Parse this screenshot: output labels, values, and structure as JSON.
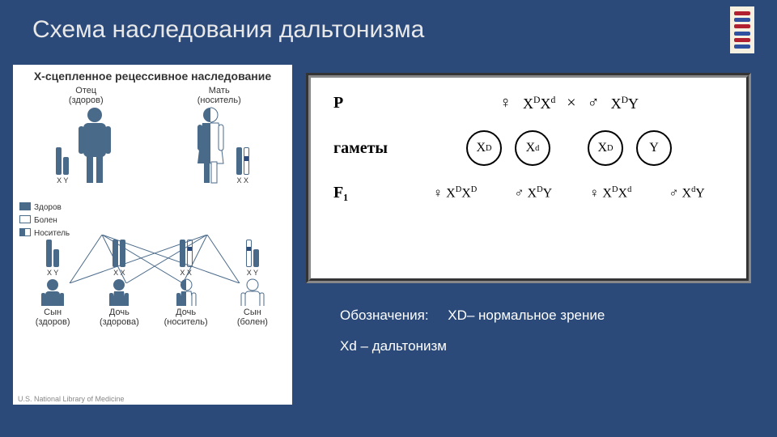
{
  "title": "Схема наследования дальтонизма",
  "dna_colors": [
    "#b02030",
    "#3050a0",
    "#b02030",
    "#3050a0",
    "#b02030",
    "#3050a0"
  ],
  "left": {
    "heading": "Х-сцепленное рецессивное наследование",
    "father": {
      "label1": "Отец",
      "label2": "(здоров)"
    },
    "mother": {
      "label1": "Мать",
      "label2": "(носитель)"
    },
    "chrom_x_label": "X",
    "chrom_y_label": "Y",
    "chrom_xx_label": "X X",
    "chrom_xy_label": "X Y",
    "legend": {
      "healthy": "Здоров",
      "affected": "Болен",
      "carrier": "Носитель"
    },
    "colors": {
      "healthy": "#4a6a8a",
      "affected": "#ffffff",
      "carrier_left": "#4a6a8a",
      "carrier_right": "#ffffff",
      "outline": "#4a6a8a",
      "band": "#2b4a7a"
    },
    "children": [
      {
        "label1": "Сын",
        "label2": "(здоров)",
        "type": "boy",
        "status": "healthy",
        "chrom": "XY"
      },
      {
        "label1": "Дочь",
        "label2": "(здорова)",
        "type": "girl",
        "status": "healthy",
        "chrom": "XX"
      },
      {
        "label1": "Дочь",
        "label2": "(носитель)",
        "type": "girl",
        "status": "carrier",
        "chrom": "Xx"
      },
      {
        "label1": "Сын",
        "label2": "(болен)",
        "type": "boy",
        "status": "affected",
        "chrom": "xY"
      }
    ],
    "credit": "U.S. National Library of Medicine"
  },
  "right": {
    "row_labels": {
      "p": "P",
      "g": "гаметы",
      "f": "F₁"
    },
    "p_female_geno_html": "X<sup>D</sup>X<sup>d</sup>",
    "p_male_geno_html": "X<sup>D</sup>Y",
    "cross_symbol": "×",
    "gametes": [
      "X<sup>D</sup>",
      "X<sup>d</sup>",
      "X<sup>D</sup>",
      "Y"
    ],
    "f1": [
      {
        "sex": "f",
        "geno": "X<sup>D</sup>X<sup>D</sup>"
      },
      {
        "sex": "m",
        "geno": "X<sup>D</sup>Y"
      },
      {
        "sex": "f",
        "geno": "X<sup>D</sup>X<sup>d</sup>"
      },
      {
        "sex": "m",
        "geno": "X<sup>d</sup>Y"
      }
    ],
    "symbols": {
      "female": "♀",
      "male": "♂"
    }
  },
  "notes": {
    "line1_label": "Обозначения:",
    "line1_value": "XD– нормальное зрение",
    "line2_value": "Xd – дальтонизм"
  }
}
